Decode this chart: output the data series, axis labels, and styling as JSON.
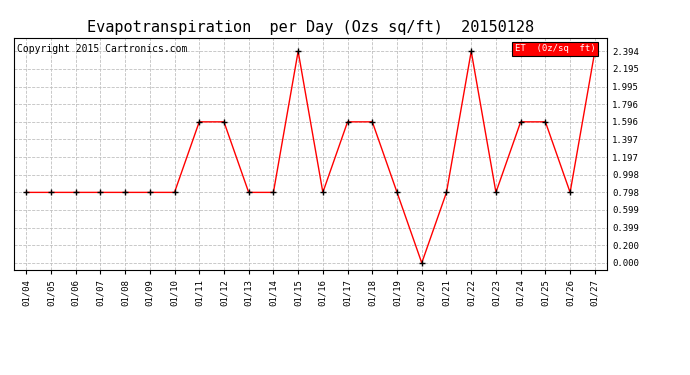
{
  "title": "Evapotranspiration  per Day (Ozs sq/ft)  20150128",
  "copyright": "Copyright 2015 Cartronics.com",
  "legend_label": "ET  (0z/sq  ft)",
  "x_labels": [
    "01/04",
    "01/05",
    "01/06",
    "01/07",
    "01/08",
    "01/09",
    "01/10",
    "01/11",
    "01/12",
    "01/13",
    "01/14",
    "01/15",
    "01/16",
    "01/17",
    "01/18",
    "01/19",
    "01/20",
    "01/21",
    "01/22",
    "01/23",
    "01/24",
    "01/25",
    "01/26",
    "01/27"
  ],
  "y_values": [
    0.798,
    0.798,
    0.798,
    0.798,
    0.798,
    0.798,
    0.798,
    1.596,
    1.596,
    0.798,
    0.798,
    2.394,
    0.798,
    1.596,
    1.596,
    0.798,
    0.0,
    0.798,
    2.394,
    0.798,
    1.596,
    1.596,
    0.798,
    2.394
  ],
  "y_ticks": [
    0.0,
    0.2,
    0.399,
    0.599,
    0.798,
    0.998,
    1.197,
    1.397,
    1.596,
    1.796,
    1.995,
    2.195,
    2.394
  ],
  "line_color": "red",
  "marker_color": "black",
  "background_color": "white",
  "grid_color": "#c0c0c0",
  "title_fontsize": 11,
  "copyright_fontsize": 7,
  "legend_bg": "red",
  "legend_text_color": "white"
}
